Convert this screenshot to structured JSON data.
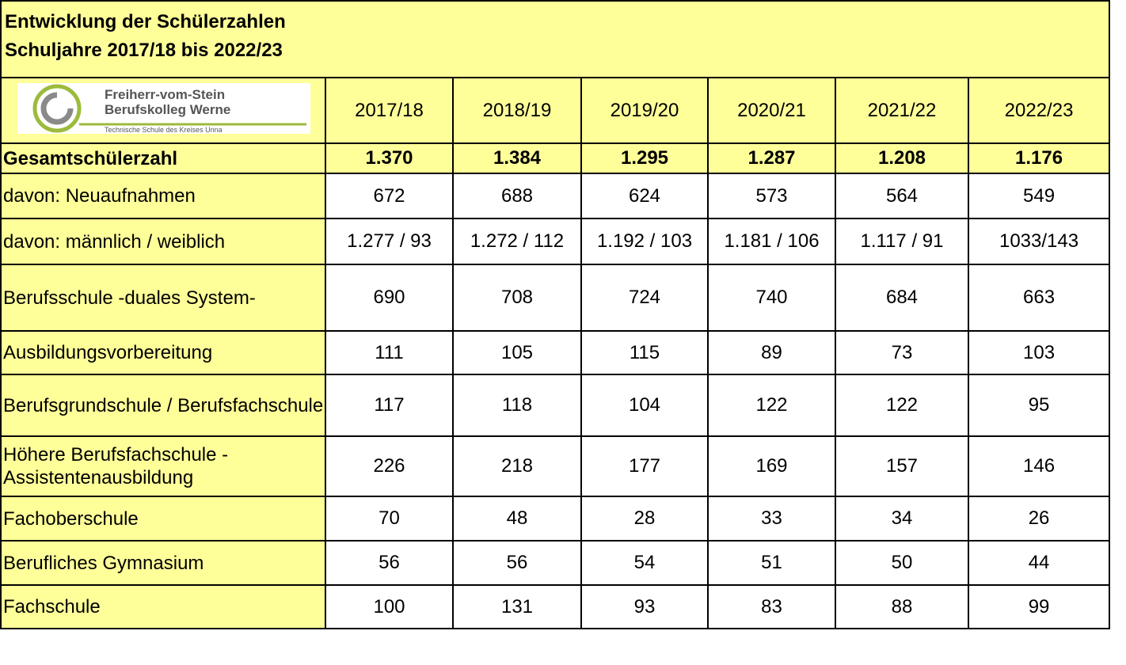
{
  "title": [
    "Entwicklung der Schülerzahlen",
    "Schuljahre 2017/18 bis 2022/23"
  ],
  "logo": {
    "name": [
      "Freiherr-vom-Stein",
      "Berufskolleg Werne"
    ],
    "subtitle": "Technische Schule des Kreises Unna"
  },
  "table": {
    "header": [
      "2017/18",
      "2018/19",
      "2019/20",
      "2020/21",
      "2021/22",
      "2022/23"
    ],
    "rows": [
      {
        "label": "Gesamtschülerzahl",
        "values": [
          "1.370",
          "1.384",
          "1.295",
          "1.287",
          "1.208",
          "1.176"
        ]
      },
      {
        "label": "davon: Neuaufnahmen",
        "values": [
          "672",
          "688",
          "624",
          "573",
          "564",
          "549"
        ]
      },
      {
        "label": "davon: männlich / weiblich",
        "values": [
          "1.277 / 93",
          "1.272 / 112",
          "1.192 / 103",
          "1.181 / 106",
          "1.117 / 91",
          "1033/143"
        ]
      },
      {
        "label": "Berufsschule -duales System-",
        "values": [
          "690",
          "708",
          "724",
          "740",
          "684",
          "663"
        ]
      },
      {
        "label": "Ausbildungsvorbereitung",
        "values": [
          "111",
          "105",
          "115",
          "89",
          "73",
          "103"
        ]
      },
      {
        "label": "Berufsgrundschule / Berufsfachschule",
        "values": [
          "117",
          "118",
          "104",
          "122",
          "122",
          "95"
        ]
      },
      {
        "label": "Höhere Berufsfachschule - Assistentenausbildung",
        "values": [
          "226",
          "218",
          "177",
          "169",
          "157",
          "146"
        ]
      },
      {
        "label": "Fachoberschule",
        "values": [
          "70",
          "48",
          "28",
          "33",
          "34",
          "26"
        ]
      },
      {
        "label": "Berufliches Gymnasium",
        "values": [
          "56",
          "56",
          "54",
          "51",
          "50",
          "44"
        ]
      },
      {
        "label": "Fachschule",
        "values": [
          "100",
          "131",
          "93",
          "83",
          "88",
          "99"
        ]
      }
    ]
  }
}
